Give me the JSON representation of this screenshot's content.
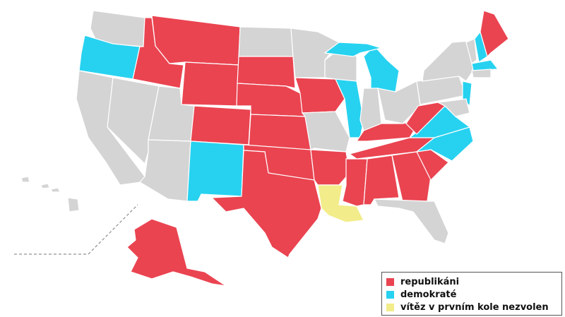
{
  "colors": {
    "republican": "#ea4451",
    "democrat": "#27d2f0",
    "undecided": "#f2ec8a",
    "other": "#d4d4d4",
    "border": "#ffffff"
  },
  "legend": [
    {
      "key": "republican",
      "label": "republikáni"
    },
    {
      "key": "democrat",
      "label": "demokraté"
    },
    {
      "key": "undecided",
      "label": "vítěz v prvním kole nezvolen"
    }
  ],
  "states": {
    "WA": "other",
    "OR": "democrat",
    "CA": "other",
    "NV": "other",
    "ID": "republican",
    "MT": "republican",
    "WY": "republican",
    "UT": "other",
    "AZ": "other",
    "CO": "republican",
    "NM": "democrat",
    "ND": "other",
    "SD": "republican",
    "NE": "republican",
    "KS": "republican",
    "OK": "republican",
    "TX": "republican",
    "MN": "other",
    "IA": "republican",
    "MO": "other",
    "AR": "republican",
    "LA": "undecided",
    "WI": "other",
    "IL": "democrat",
    "MI": "democrat",
    "IN": "other",
    "OH": "other",
    "KY": "republican",
    "TN": "republican",
    "MS": "republican",
    "AL": "republican",
    "GA": "republican",
    "FL": "other",
    "SC": "republican",
    "NC": "democrat",
    "VA": "democrat",
    "WV": "republican",
    "PA": "other",
    "NY": "other",
    "NJ": "democrat",
    "MD": "other",
    "VT": "other",
    "NH": "democrat",
    "ME": "republican",
    "MA": "democrat",
    "CT": "other",
    "AK": "republican",
    "HI": "other"
  }
}
